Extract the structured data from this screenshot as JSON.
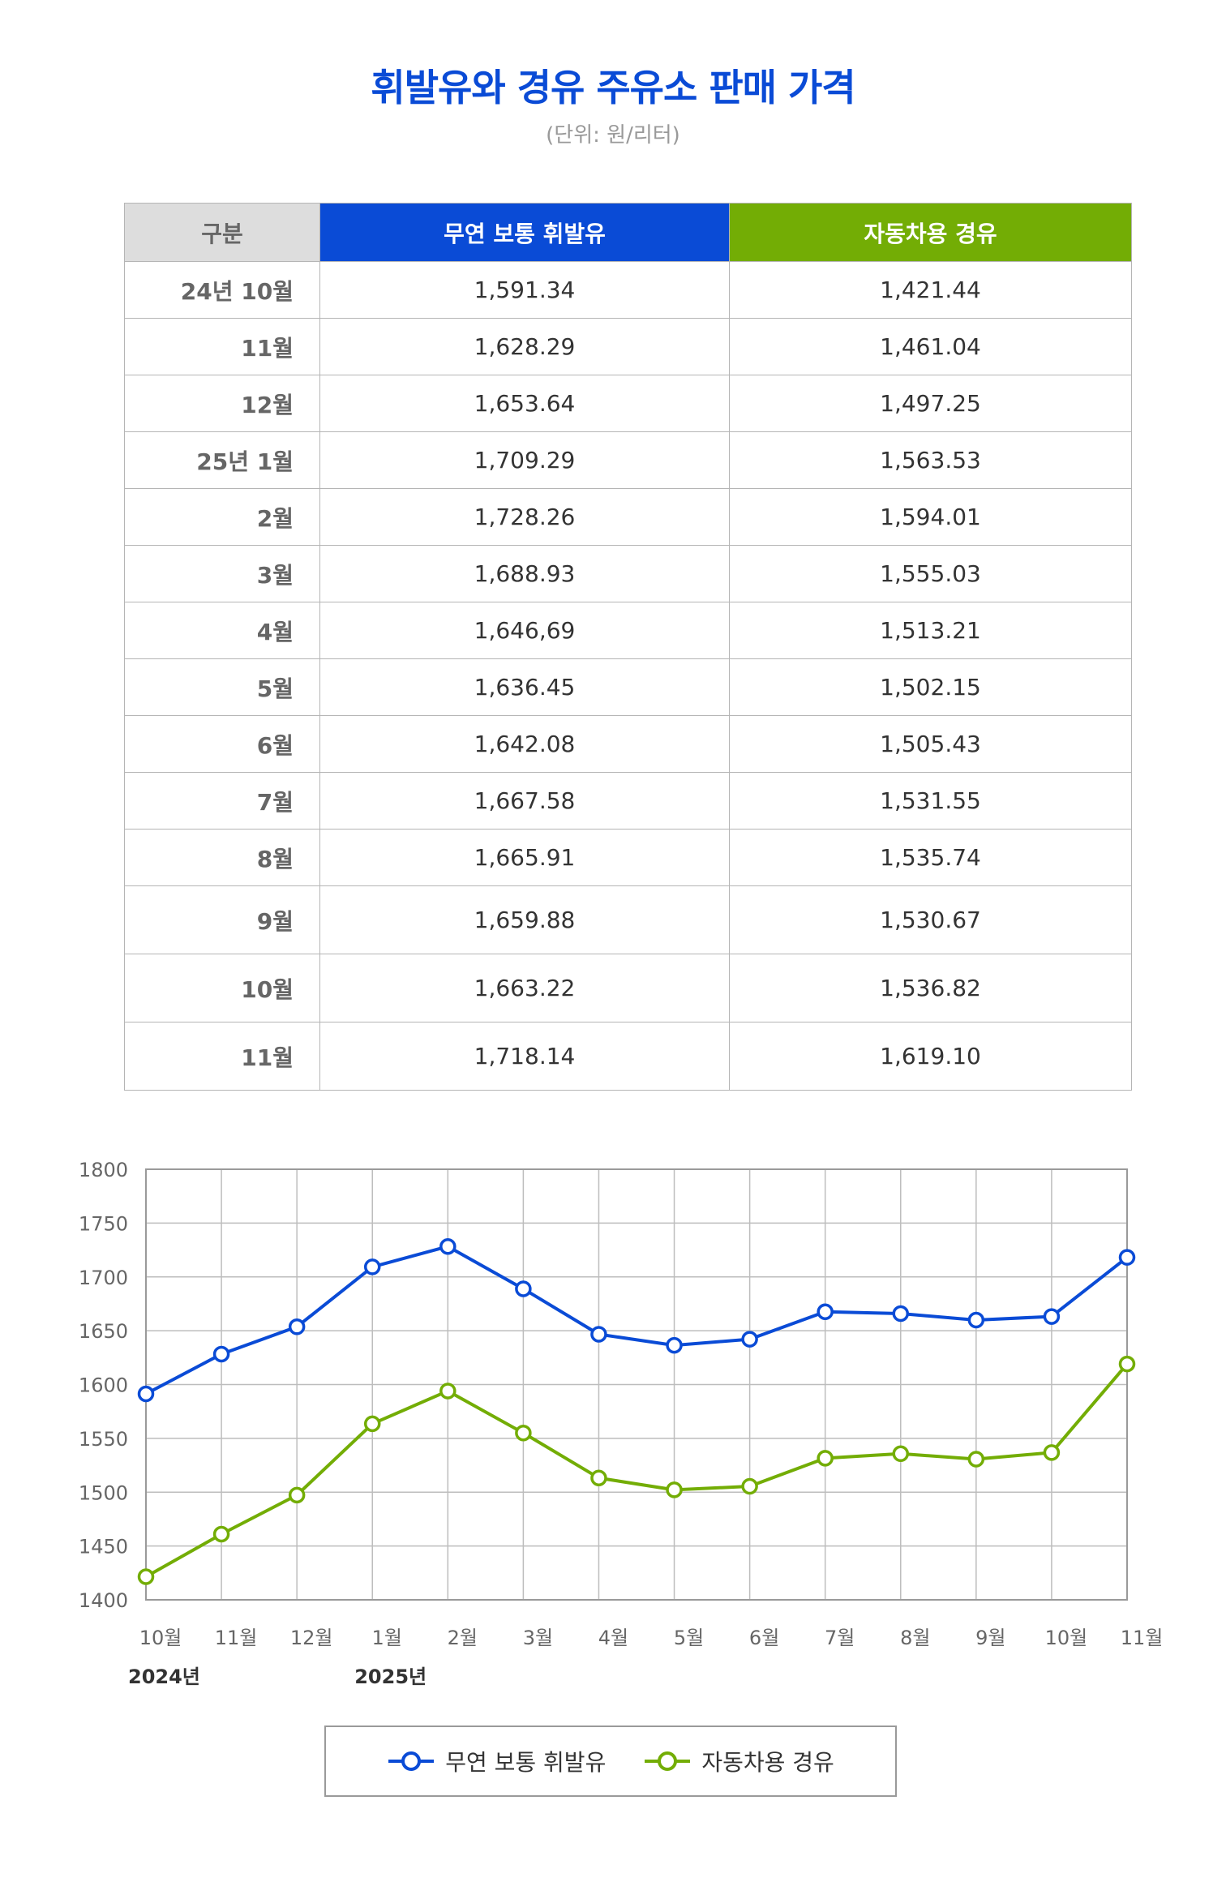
{
  "title": "휘발유와 경유 주유소 판매 가격",
  "unit": "(단위: 원/리터)",
  "colors": {
    "gasoline": "#0a4bd6",
    "diesel": "#73ad05",
    "header_gray": "#dddddd"
  },
  "table": {
    "headers": [
      "구분",
      "무연 보통 휘발유",
      "자동차용 경유"
    ],
    "rows": [
      {
        "month": "24년 10월",
        "gasoline": "1,591.34",
        "diesel": "1,421.44"
      },
      {
        "month": "11월",
        "gasoline": "1,628.29",
        "diesel": "1,461.04"
      },
      {
        "month": "12월",
        "gasoline": "1,653.64",
        "diesel": "1,497.25"
      },
      {
        "month": "25년 1월",
        "gasoline": "1,709.29",
        "diesel": "1,563.53"
      },
      {
        "month": "2월",
        "gasoline": "1,728.26",
        "diesel": "1,594.01"
      },
      {
        "month": "3월",
        "gasoline": "1,688.93",
        "diesel": "1,555.03"
      },
      {
        "month": "4월",
        "gasoline": "1,646,69",
        "diesel": "1,513.21"
      },
      {
        "month": "5월",
        "gasoline": "1,636.45",
        "diesel": "1,502.15"
      },
      {
        "month": "6월",
        "gasoline": "1,642.08",
        "diesel": "1,505.43"
      },
      {
        "month": "7월",
        "gasoline": "1,667.58",
        "diesel": "1,531.55"
      },
      {
        "month": "8월",
        "gasoline": "1,665.91",
        "diesel": "1,535.74"
      },
      {
        "month": "9월",
        "gasoline": "1,659.88",
        "diesel": "1,530.67"
      },
      {
        "month": "10월",
        "gasoline": "1,663.22",
        "diesel": "1,536.82"
      },
      {
        "month": "11월",
        "gasoline": "1,718.14",
        "diesel": "1,619.10"
      }
    ]
  },
  "chart_data": {
    "type": "line",
    "categories": [
      "10월",
      "11월",
      "12월",
      "1월",
      "2월",
      "3월",
      "4월",
      "5월",
      "6월",
      "7월",
      "8월",
      "9월",
      "10월",
      "11월"
    ],
    "year_labels": [
      {
        "index": 0,
        "label": "2024년"
      },
      {
        "index": 3,
        "label": "2025년"
      }
    ],
    "yticks": [
      1400,
      1450,
      1500,
      1550,
      1600,
      1650,
      1700,
      1750,
      1800
    ],
    "ylim": [
      1400,
      1800
    ],
    "grid": true,
    "legend_position": "bottom",
    "series": [
      {
        "name": "무연 보통 휘발유",
        "color": "#0a4bd6",
        "values": [
          1591.34,
          1628.29,
          1653.64,
          1709.29,
          1728.26,
          1688.93,
          1646.69,
          1636.45,
          1642.08,
          1667.58,
          1665.91,
          1659.88,
          1663.22,
          1718.14
        ]
      },
      {
        "name": "자동차용 경유",
        "color": "#73ad05",
        "values": [
          1421.44,
          1461.04,
          1497.25,
          1563.53,
          1594.01,
          1555.03,
          1513.21,
          1502.15,
          1505.43,
          1531.55,
          1535.74,
          1530.67,
          1536.82,
          1619.1
        ]
      }
    ]
  }
}
